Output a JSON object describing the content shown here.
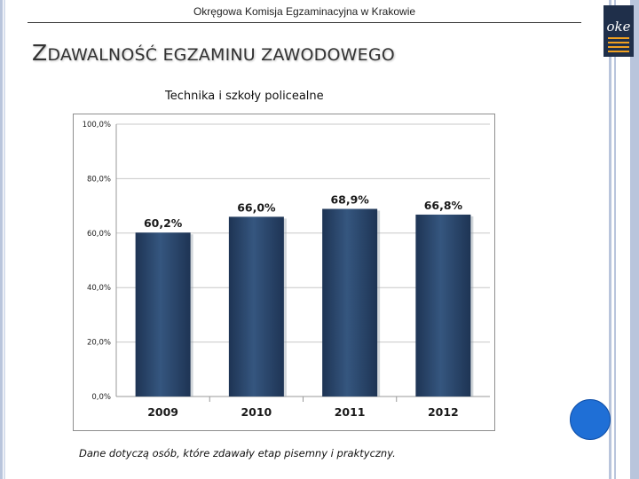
{
  "header": {
    "institution": "Okręgowa Komisja Egzaminacyjna w Krakowie"
  },
  "title": {
    "first_letter": "Z",
    "rest": "DAWALNOŚĆ EGZAMINU ZAWODOWEGO"
  },
  "logo": {
    "text": "oke",
    "colors": {
      "dark": "#1f2f4a",
      "accent": "#f0a020"
    }
  },
  "footnote": "Dane dotyczą osób, które zdawały etap pisemny i praktyczny.",
  "colors": {
    "bar": "#1e3454",
    "bar_light": "#35567f",
    "grid": "#c8c8c8",
    "circle": "#1f6fd6"
  },
  "chart_data": {
    "type": "bar",
    "title": "Technika i szkoły policealne",
    "categories": [
      "2009",
      "2010",
      "2011",
      "2012"
    ],
    "values": [
      60.2,
      66.0,
      68.9,
      66.8
    ],
    "data_labels": [
      "60,2%",
      "66,0%",
      "68,9%",
      "66,8%"
    ],
    "ylim": [
      0,
      100
    ],
    "yticks": [
      0,
      20,
      40,
      60,
      80,
      100
    ],
    "ytick_labels": [
      "0,0%",
      "20,0%",
      "40,0%",
      "60,0%",
      "80,0%",
      "100,0%"
    ],
    "grid": true,
    "xlabel": "",
    "ylabel": ""
  }
}
